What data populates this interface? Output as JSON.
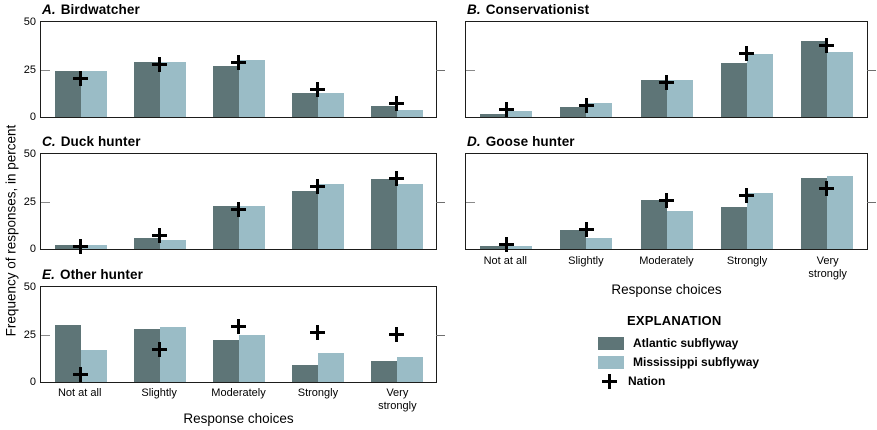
{
  "figure": {
    "y_axis_label": "Frequency of responses, in percent",
    "x_axis_label": "Response choices",
    "y_ticks": {
      "top": "50",
      "mid": "25",
      "bottom": "0"
    },
    "categories": [
      "Not at all",
      "Slightly",
      "Moderately",
      "Strongly",
      "Very strongly"
    ],
    "colors": {
      "atlantic": "#5e7577",
      "mississippi": "#9abcc6",
      "nation_marker": "#000000",
      "plot_border": "#1d1d1b"
    },
    "legend": {
      "title": "EXPLANATION",
      "items": [
        {
          "label": "Atlantic subflyway",
          "symbol": "dark-swatch"
        },
        {
          "label": "Mississippi subflyway",
          "symbol": "light-swatch"
        },
        {
          "label": "Nation",
          "symbol": "plus-marker"
        }
      ]
    }
  },
  "chart_data": [
    {
      "id": "A",
      "type": "bar",
      "title_letter": "A.",
      "title": "Birdwatcher",
      "categories": [
        "Not at all",
        "Slightly",
        "Moderately",
        "Strongly",
        "Very strongly"
      ],
      "ylim": [
        0,
        50
      ],
      "yticks": [
        0,
        25,
        50
      ],
      "grid": false,
      "series": [
        {
          "name": "Atlantic subflyway",
          "style": "bar",
          "values": [
            24.5,
            29.5,
            27.5,
            13,
            6
          ]
        },
        {
          "name": "Mississippi subflyway",
          "style": "bar",
          "values": [
            24.5,
            29.5,
            30.5,
            13,
            4
          ]
        },
        {
          "name": "Nation",
          "style": "plus-marker",
          "values": [
            20.5,
            28.5,
            29.5,
            15,
            7.5
          ]
        }
      ]
    },
    {
      "id": "B",
      "type": "bar",
      "title_letter": "B.",
      "title": "Conservationist",
      "categories": [
        "Not at all",
        "Slightly",
        "Moderately",
        "Strongly",
        "Very strongly"
      ],
      "ylim": [
        0,
        50
      ],
      "yticks": [
        0,
        25,
        50
      ],
      "grid": false,
      "series": [
        {
          "name": "Atlantic subflyway",
          "style": "bar",
          "values": [
            1.5,
            5.5,
            20,
            29,
            41
          ]
        },
        {
          "name": "Mississippi subflyway",
          "style": "bar",
          "values": [
            3,
            7.5,
            20,
            34,
            35
          ]
        },
        {
          "name": "Nation",
          "style": "plus-marker",
          "values": [
            4,
            6,
            18.5,
            34,
            38.5
          ]
        }
      ]
    },
    {
      "id": "C",
      "type": "bar",
      "title_letter": "C.",
      "title": "Duck hunter",
      "categories": [
        "Not at all",
        "Slightly",
        "Moderately",
        "Strongly",
        "Very strongly"
      ],
      "ylim": [
        0,
        50
      ],
      "yticks": [
        0,
        25,
        50
      ],
      "grid": false,
      "series": [
        {
          "name": "Atlantic subflyway",
          "style": "bar",
          "values": [
            2,
            6,
            23,
            31,
            37.5
          ]
        },
        {
          "name": "Mississippi subflyway",
          "style": "bar",
          "values": [
            2,
            5,
            23,
            35,
            35
          ]
        },
        {
          "name": "Nation",
          "style": "plus-marker",
          "values": [
            1.5,
            7.5,
            21.5,
            33.5,
            38
          ]
        }
      ]
    },
    {
      "id": "D",
      "type": "bar",
      "title_letter": "D.",
      "title": "Goose hunter",
      "categories": [
        "Not at all",
        "Slightly",
        "Moderately",
        "Strongly",
        "Very strongly"
      ],
      "ylim": [
        0,
        50
      ],
      "yticks": [
        0,
        25,
        50
      ],
      "grid": false,
      "series": [
        {
          "name": "Atlantic subflyway",
          "style": "bar",
          "values": [
            1.5,
            10,
            26.5,
            22.5,
            38
          ]
        },
        {
          "name": "Mississippi subflyway",
          "style": "bar",
          "values": [
            1.5,
            6,
            20.5,
            30,
            39
          ]
        },
        {
          "name": "Nation",
          "style": "plus-marker",
          "values": [
            2.5,
            10.5,
            26,
            29,
            32.5
          ]
        }
      ]
    },
    {
      "id": "E",
      "type": "bar",
      "title_letter": "E.",
      "title": "Other hunter",
      "categories": [
        "Not at all",
        "Slightly",
        "Moderately",
        "Strongly",
        "Very strongly"
      ],
      "ylim": [
        0,
        50
      ],
      "yticks": [
        0,
        25,
        50
      ],
      "grid": false,
      "series": [
        {
          "name": "Atlantic subflyway",
          "style": "bar",
          "values": [
            30.5,
            28.5,
            22.5,
            9,
            11.5
          ]
        },
        {
          "name": "Mississippi subflyway",
          "style": "bar",
          "values": [
            17,
            29.5,
            25.5,
            15.5,
            13.5
          ]
        },
        {
          "name": "Nation",
          "style": "plus-marker",
          "values": [
            4,
            17.5,
            30,
            26.5,
            25.5
          ]
        }
      ]
    }
  ]
}
